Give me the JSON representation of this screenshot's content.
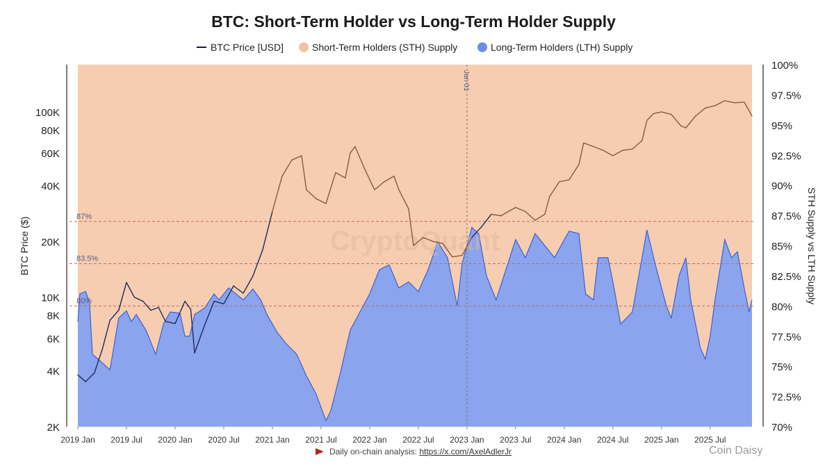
{
  "chart_data": {
    "type": "area",
    "title": "BTC: Short-Term Holder vs Long-Term Holder Supply",
    "legend": [
      {
        "label": "BTC Price [USD]",
        "marker": "line",
        "color": "#1b1b2e"
      },
      {
        "label": "Short-Term Holders (STH) Supply",
        "marker": "dot",
        "color": "#f2c2a1"
      },
      {
        "label": "Long-Term Holders (LTH) Supply",
        "marker": "dot",
        "color": "#6e8ee6"
      }
    ],
    "legend_position": "top-center",
    "ylabel_left": "BTC Price ($)",
    "ylabel_right": "STH Supply vs LTH Supply",
    "y_left_scale": "log",
    "y_left_range": [
      2000,
      180000
    ],
    "y_left_ticks": [
      {
        "value": 2000,
        "label": "2K"
      },
      {
        "value": 4000,
        "label": "4K"
      },
      {
        "value": 6000,
        "label": "6K"
      },
      {
        "value": 8000,
        "label": "8K"
      },
      {
        "value": 10000,
        "label": "10K"
      },
      {
        "value": 20000,
        "label": "20K"
      },
      {
        "value": 40000,
        "label": "40K"
      },
      {
        "value": 60000,
        "label": "60K"
      },
      {
        "value": 80000,
        "label": "80K"
      },
      {
        "value": 100000,
        "label": "100K"
      }
    ],
    "y_right_range": [
      70,
      100
    ],
    "y_right_ticks": [
      {
        "value": 70,
        "label": "70%"
      },
      {
        "value": 72.5,
        "label": "72.5%"
      },
      {
        "value": 75,
        "label": "75%"
      },
      {
        "value": 77.5,
        "label": "77.5%"
      },
      {
        "value": 80,
        "label": "80%"
      },
      {
        "value": 82.5,
        "label": "82.5%"
      },
      {
        "value": 85,
        "label": "85%"
      },
      {
        "value": 87.5,
        "label": "87.5%"
      },
      {
        "value": 90,
        "label": "90%"
      },
      {
        "value": 92.5,
        "label": "92.5%"
      },
      {
        "value": 95,
        "label": "95%"
      },
      {
        "value": 97.5,
        "label": "97.5%"
      },
      {
        "value": 100,
        "label": "100%"
      }
    ],
    "x_range": [
      2019.0,
      2025.93
    ],
    "x_ticks": [
      {
        "value": 2019.0,
        "label": "2019 Jan"
      },
      {
        "value": 2019.5,
        "label": "2019 Jul"
      },
      {
        "value": 2020.0,
        "label": "2020 Jan"
      },
      {
        "value": 2020.5,
        "label": "2020 Jul"
      },
      {
        "value": 2021.0,
        "label": "2021 Jan"
      },
      {
        "value": 2021.5,
        "label": "2021 Jul"
      },
      {
        "value": 2022.0,
        "label": "2022 Jan"
      },
      {
        "value": 2022.5,
        "label": "2022 Jul"
      },
      {
        "value": 2023.0,
        "label": "2023 Jan"
      },
      {
        "value": 2023.5,
        "label": "2023 Jul"
      },
      {
        "value": 2024.0,
        "label": "2024 Jan"
      },
      {
        "value": 2024.5,
        "label": "2024 Jul"
      },
      {
        "value": 2025.0,
        "label": "2025 Jan"
      },
      {
        "value": 2025.5,
        "label": "2025 Jul"
      }
    ],
    "reference_lines": [
      {
        "value": 87,
        "label": "87%"
      },
      {
        "value": 83.5,
        "label": "83.5%"
      },
      {
        "value": 80,
        "label": "80%"
      }
    ],
    "vertical_marker": {
      "x": 2023.0,
      "label": "Jan 01"
    },
    "watermark": "CryptoQuant",
    "series": [
      {
        "name": "Long-Term Holders (LTH) Supply",
        "unit": "%",
        "points": [
          [
            2019.0,
            78.7
          ],
          [
            2019.02,
            81.0
          ],
          [
            2019.08,
            81.2
          ],
          [
            2019.12,
            80.3
          ],
          [
            2019.15,
            76.0
          ],
          [
            2019.25,
            75.3
          ],
          [
            2019.33,
            74.7
          ],
          [
            2019.42,
            79.0
          ],
          [
            2019.5,
            79.6
          ],
          [
            2019.55,
            78.7
          ],
          [
            2019.6,
            79.3
          ],
          [
            2019.7,
            78.0
          ],
          [
            2019.8,
            76.0
          ],
          [
            2019.88,
            78.5
          ],
          [
            2019.95,
            79.5
          ],
          [
            2020.05,
            79.4
          ],
          [
            2020.1,
            77.5
          ],
          [
            2020.15,
            77.5
          ],
          [
            2020.2,
            79.3
          ],
          [
            2020.3,
            79.8
          ],
          [
            2020.4,
            81.0
          ],
          [
            2020.45,
            80.5
          ],
          [
            2020.55,
            81.5
          ],
          [
            2020.7,
            80.5
          ],
          [
            2020.8,
            81.4
          ],
          [
            2020.88,
            80.5
          ],
          [
            2020.95,
            79.2
          ],
          [
            2021.05,
            77.8
          ],
          [
            2021.15,
            76.8
          ],
          [
            2021.25,
            76.0
          ],
          [
            2021.35,
            74.2
          ],
          [
            2021.45,
            72.7
          ],
          [
            2021.55,
            70.5
          ],
          [
            2021.6,
            71.3
          ],
          [
            2021.7,
            74.5
          ],
          [
            2021.8,
            78.0
          ],
          [
            2021.9,
            79.5
          ],
          [
            2022.0,
            81.0
          ],
          [
            2022.1,
            83.0
          ],
          [
            2022.2,
            83.4
          ],
          [
            2022.3,
            81.5
          ],
          [
            2022.4,
            82.0
          ],
          [
            2022.5,
            81.2
          ],
          [
            2022.6,
            83.0
          ],
          [
            2022.7,
            85.3
          ],
          [
            2022.8,
            84.0
          ],
          [
            2022.85,
            82.0
          ],
          [
            2022.9,
            80.0
          ],
          [
            2022.95,
            83.5
          ],
          [
            2023.05,
            86.5
          ],
          [
            2023.12,
            86.0
          ],
          [
            2023.2,
            82.5
          ],
          [
            2023.3,
            80.5
          ],
          [
            2023.4,
            83.0
          ],
          [
            2023.5,
            85.5
          ],
          [
            2023.6,
            84.0
          ],
          [
            2023.7,
            86.0
          ],
          [
            2023.8,
            85.0
          ],
          [
            2023.9,
            84.0
          ],
          [
            2024.0,
            85.5
          ],
          [
            2024.05,
            86.2
          ],
          [
            2024.15,
            86.0
          ],
          [
            2024.22,
            81.0
          ],
          [
            2024.3,
            80.5
          ],
          [
            2024.35,
            84.0
          ],
          [
            2024.45,
            84.0
          ],
          [
            2024.5,
            82.0
          ],
          [
            2024.58,
            78.5
          ],
          [
            2024.7,
            79.5
          ],
          [
            2024.8,
            84.0
          ],
          [
            2024.85,
            86.3
          ],
          [
            2024.95,
            83.0
          ],
          [
            2025.05,
            80.0
          ],
          [
            2025.1,
            79.0
          ],
          [
            2025.18,
            82.5
          ],
          [
            2025.25,
            84.0
          ],
          [
            2025.3,
            80.5
          ],
          [
            2025.4,
            76.5
          ],
          [
            2025.45,
            75.6
          ],
          [
            2025.5,
            77.5
          ],
          [
            2025.55,
            80.5
          ],
          [
            2025.65,
            85.5
          ],
          [
            2025.72,
            84.0
          ],
          [
            2025.78,
            84.5
          ],
          [
            2025.85,
            81.5
          ],
          [
            2025.9,
            79.5
          ],
          [
            2025.93,
            80.5
          ]
        ]
      },
      {
        "name": "BTC Price [USD]",
        "unit": "USD",
        "points": [
          [
            2019.0,
            3800
          ],
          [
            2019.08,
            3500
          ],
          [
            2019.17,
            3900
          ],
          [
            2019.25,
            5200
          ],
          [
            2019.33,
            7500
          ],
          [
            2019.42,
            8500
          ],
          [
            2019.5,
            12000
          ],
          [
            2019.58,
            10000
          ],
          [
            2019.67,
            9500
          ],
          [
            2019.75,
            8500
          ],
          [
            2019.83,
            8800
          ],
          [
            2019.9,
            7400
          ],
          [
            2020.0,
            7200
          ],
          [
            2020.1,
            9500
          ],
          [
            2020.16,
            8600
          ],
          [
            2020.2,
            5000
          ],
          [
            2020.3,
            7000
          ],
          [
            2020.4,
            9500
          ],
          [
            2020.5,
            9200
          ],
          [
            2020.6,
            11500
          ],
          [
            2020.7,
            10500
          ],
          [
            2020.8,
            13000
          ],
          [
            2020.9,
            18000
          ],
          [
            2021.0,
            29000
          ],
          [
            2021.1,
            45000
          ],
          [
            2021.2,
            55000
          ],
          [
            2021.3,
            58000
          ],
          [
            2021.35,
            38000
          ],
          [
            2021.45,
            34000
          ],
          [
            2021.55,
            32000
          ],
          [
            2021.65,
            47000
          ],
          [
            2021.75,
            44000
          ],
          [
            2021.8,
            60000
          ],
          [
            2021.85,
            65000
          ],
          [
            2021.95,
            49000
          ],
          [
            2022.05,
            38000
          ],
          [
            2022.15,
            42000
          ],
          [
            2022.25,
            45000
          ],
          [
            2022.3,
            38000
          ],
          [
            2022.4,
            30000
          ],
          [
            2022.45,
            19000
          ],
          [
            2022.55,
            21000
          ],
          [
            2022.65,
            20000
          ],
          [
            2022.75,
            19500
          ],
          [
            2022.85,
            16500
          ],
          [
            2022.95,
            16800
          ],
          [
            2023.05,
            21000
          ],
          [
            2023.15,
            24000
          ],
          [
            2023.25,
            28000
          ],
          [
            2023.35,
            27500
          ],
          [
            2023.5,
            30500
          ],
          [
            2023.6,
            29000
          ],
          [
            2023.7,
            26000
          ],
          [
            2023.8,
            28000
          ],
          [
            2023.85,
            35000
          ],
          [
            2023.95,
            42000
          ],
          [
            2024.05,
            43000
          ],
          [
            2024.15,
            52000
          ],
          [
            2024.2,
            68000
          ],
          [
            2024.3,
            65000
          ],
          [
            2024.4,
            62000
          ],
          [
            2024.5,
            58000
          ],
          [
            2024.6,
            62000
          ],
          [
            2024.7,
            63000
          ],
          [
            2024.8,
            70000
          ],
          [
            2024.85,
            90000
          ],
          [
            2024.92,
            98000
          ],
          [
            2025.0,
            100000
          ],
          [
            2025.1,
            97000
          ],
          [
            2025.2,
            84000
          ],
          [
            2025.25,
            82000
          ],
          [
            2025.35,
            95000
          ],
          [
            2025.45,
            105000
          ],
          [
            2025.55,
            108000
          ],
          [
            2025.65,
            115000
          ],
          [
            2025.75,
            112000
          ],
          [
            2025.85,
            113000
          ],
          [
            2025.93,
            95000
          ]
        ]
      },
      {
        "name": "Short-Term Holders (STH) Supply",
        "unit": "%",
        "note": "complement of LTH supply (100% - LTH)"
      }
    ]
  },
  "footer": {
    "prefix": "Daily on-chain analysis:",
    "link": "https://x.com/AxelAdlerJr"
  },
  "corner_logo": "Coin Daisy"
}
